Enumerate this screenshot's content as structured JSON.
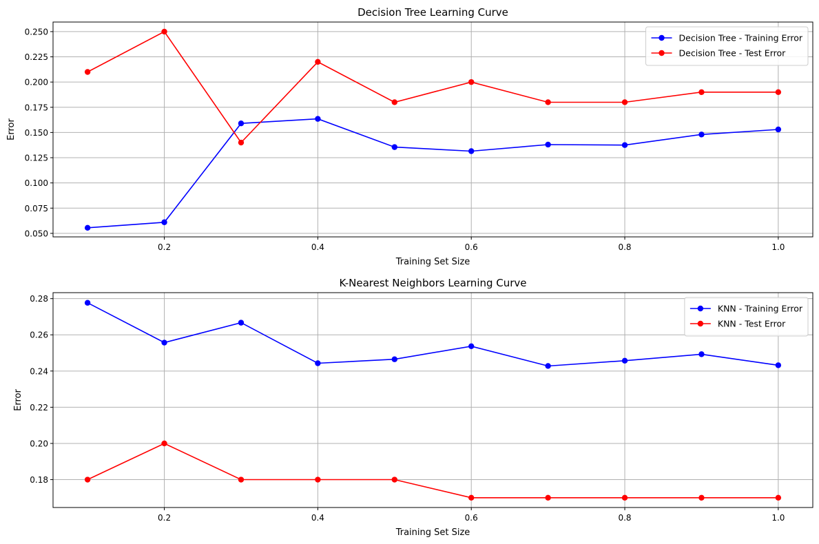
{
  "chart_data": [
    {
      "type": "line",
      "title": "Decision Tree Learning Curve",
      "xlabel": "Training Set Size",
      "ylabel": "Error",
      "x": [
        0.1,
        0.2,
        0.3,
        0.4,
        0.5,
        0.6,
        0.7,
        0.8,
        0.9,
        1.0
      ],
      "xlim": [
        0.055,
        1.045
      ],
      "ylim": [
        0.0465,
        0.2595
      ],
      "xticks": [
        0.2,
        0.4,
        0.6,
        0.8,
        1.0
      ],
      "xtick_labels": [
        "0.2",
        "0.4",
        "0.6",
        "0.8",
        "1.0"
      ],
      "yticks": [
        0.05,
        0.075,
        0.1,
        0.125,
        0.15,
        0.175,
        0.2,
        0.225,
        0.25
      ],
      "ytick_labels": [
        "0.050",
        "0.075",
        "0.100",
        "0.125",
        "0.150",
        "0.175",
        "0.200",
        "0.225",
        "0.250"
      ],
      "grid": true,
      "legend_position": "top-right",
      "series": [
        {
          "name": "Decision Tree - Training Error",
          "color": "#0000ff",
          "marker": "circle",
          "values": [
            0.0555,
            0.061,
            0.159,
            0.1635,
            0.1355,
            0.1315,
            0.138,
            0.1375,
            0.148,
            0.153
          ]
        },
        {
          "name": "Decision Tree - Test Error",
          "color": "#ff0000",
          "marker": "circle",
          "values": [
            0.21,
            0.25,
            0.14,
            0.22,
            0.18,
            0.2,
            0.18,
            0.18,
            0.19,
            0.19
          ]
        }
      ]
    },
    {
      "type": "line",
      "title": "K-Nearest Neighbors Learning Curve",
      "xlabel": "Training Set Size",
      "ylabel": "Error",
      "x": [
        0.1,
        0.2,
        0.3,
        0.4,
        0.5,
        0.6,
        0.7,
        0.8,
        0.9,
        1.0
      ],
      "xlim": [
        0.055,
        1.045
      ],
      "ylim": [
        0.1646,
        0.2833
      ],
      "xticks": [
        0.2,
        0.4,
        0.6,
        0.8,
        1.0
      ],
      "xtick_labels": [
        "0.2",
        "0.4",
        "0.6",
        "0.8",
        "1.0"
      ],
      "yticks": [
        0.18,
        0.2,
        0.22,
        0.24,
        0.26,
        0.28
      ],
      "ytick_labels": [
        "0.18",
        "0.20",
        "0.22",
        "0.24",
        "0.26",
        "0.28"
      ],
      "grid": true,
      "legend_position": "top-right",
      "series": [
        {
          "name": "KNN - Training Error",
          "color": "#0000ff",
          "marker": "circle",
          "values": [
            0.2777,
            0.2557,
            0.2667,
            0.2443,
            0.2465,
            0.2537,
            0.2428,
            0.2457,
            0.2493,
            0.2432
          ]
        },
        {
          "name": "KNN - Test Error",
          "color": "#ff0000",
          "marker": "circle",
          "values": [
            0.18,
            0.2,
            0.18,
            0.18,
            0.18,
            0.17,
            0.17,
            0.17,
            0.17,
            0.17
          ]
        }
      ]
    }
  ]
}
